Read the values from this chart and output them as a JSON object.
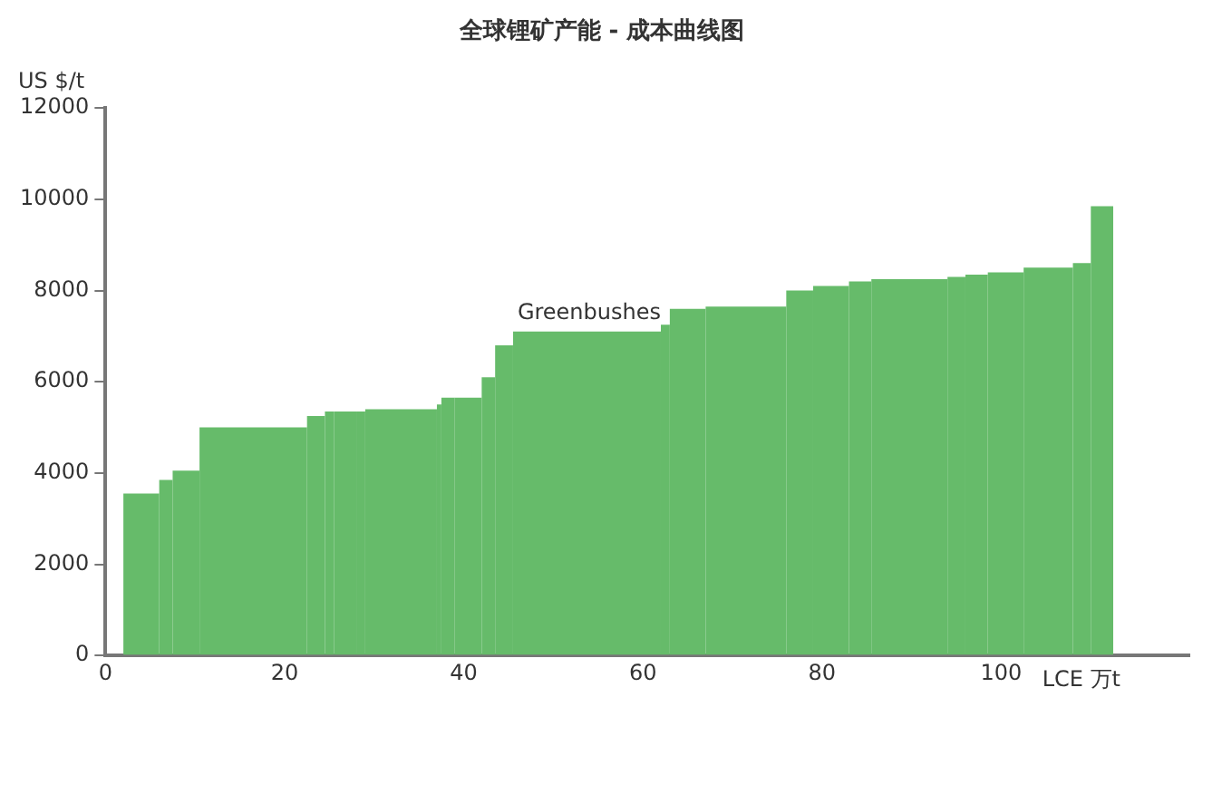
{
  "chart_data": {
    "type": "histogram",
    "title": "全球锂矿产能 - 成本曲线图",
    "xlabel": "LCE 万t",
    "ylabel": "US $/t",
    "bins": [
      2,
      6,
      7.5,
      10.5,
      22.5,
      24.5,
      25.5,
      28,
      29,
      37,
      37.5,
      39,
      42,
      43.5,
      45.5,
      62,
      63,
      67,
      76,
      79,
      83,
      85.5,
      94,
      96,
      98.5,
      102.5,
      108,
      110,
      112.5
    ],
    "values": [
      3550,
      3850,
      4050,
      5000,
      5250,
      5350,
      5350,
      5350,
      5400,
      5500,
      5650,
      5650,
      6100,
      6800,
      7100,
      7250,
      7600,
      7650,
      8000,
      8100,
      8200,
      8250,
      8300,
      8350,
      8400,
      8500,
      8600,
      9850
    ],
    "color": "#66bb6a",
    "xlim": [
      0,
      121
    ],
    "xticks": [
      0,
      20,
      40,
      60,
      80,
      100
    ],
    "ylim": [
      0,
      12000
    ],
    "yticks": [
      0,
      2000,
      4000,
      6000,
      8000,
      10000,
      12000
    ],
    "annotations": [
      {
        "text": "Greenbushes",
        "x": 54,
        "y": 7100
      }
    ],
    "grid": false,
    "legend": false
  }
}
